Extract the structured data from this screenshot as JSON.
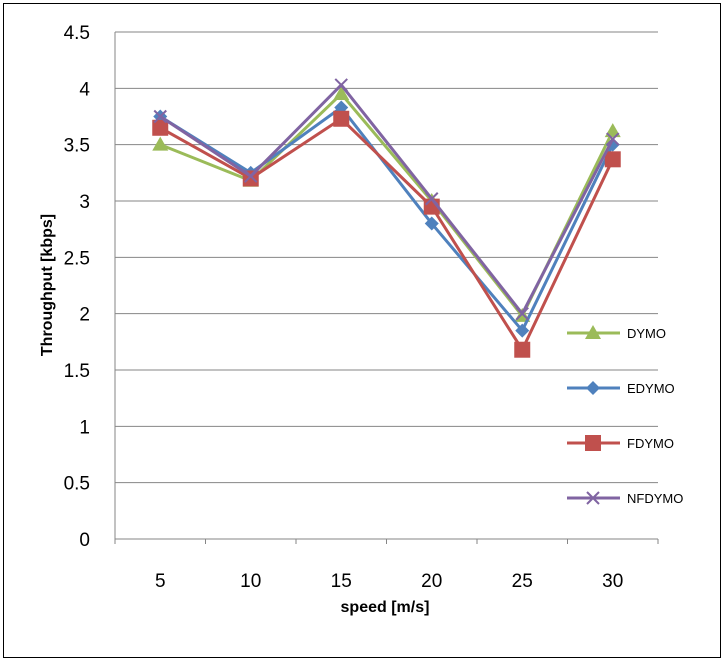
{
  "chart_data": {
    "type": "line",
    "xlabel": "speed [m/s]",
    "ylabel": "Throughput [kbps]",
    "categories": [
      "5",
      "10",
      "15",
      "20",
      "25",
      "30"
    ],
    "ylim": [
      0,
      4.5
    ],
    "yticks": [
      "0",
      "0.5",
      "1",
      "1.5",
      "2",
      "2.5",
      "3",
      "3.5",
      "4",
      "4.5"
    ],
    "grid": "horizontal",
    "legend_position": "right",
    "series": [
      {
        "name": "DYMO",
        "values": [
          3.5,
          3.18,
          3.95,
          3.0,
          1.98,
          3.62
        ],
        "color": "#9BBB59",
        "marker": "triangle"
      },
      {
        "name": "EDYMO",
        "values": [
          3.75,
          3.25,
          3.83,
          2.8,
          1.85,
          3.5
        ],
        "color": "#4F81BD",
        "marker": "diamond"
      },
      {
        "name": "FDYMO",
        "values": [
          3.65,
          3.2,
          3.73,
          2.95,
          1.68,
          3.37
        ],
        "color": "#C0504D",
        "marker": "square"
      },
      {
        "name": "NFDYMO",
        "values": [
          3.75,
          3.22,
          4.03,
          3.02,
          2.0,
          3.55
        ],
        "color": "#8064A2",
        "marker": "x"
      }
    ]
  }
}
